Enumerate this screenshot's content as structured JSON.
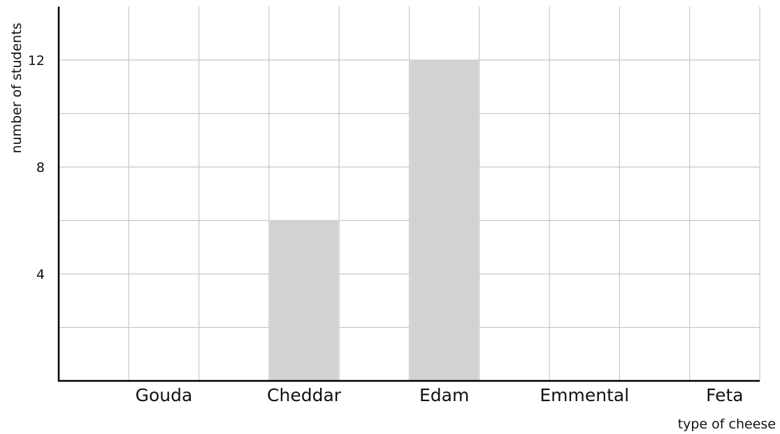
{
  "chart_data": {
    "type": "bar",
    "categories": [
      "Gouda",
      "Cheddar",
      "Edam",
      "Emmental",
      "Feta"
    ],
    "values": [
      null,
      6,
      12,
      null,
      null
    ],
    "xlabel": "type of cheese",
    "ylabel": "number of students",
    "ylim": [
      0,
      14
    ],
    "yticks": [
      4,
      8,
      12
    ],
    "grid": true,
    "colors": {
      "bar": "#d1d2d4",
      "grid": "#c8c8c8",
      "axis": "#000000"
    }
  }
}
